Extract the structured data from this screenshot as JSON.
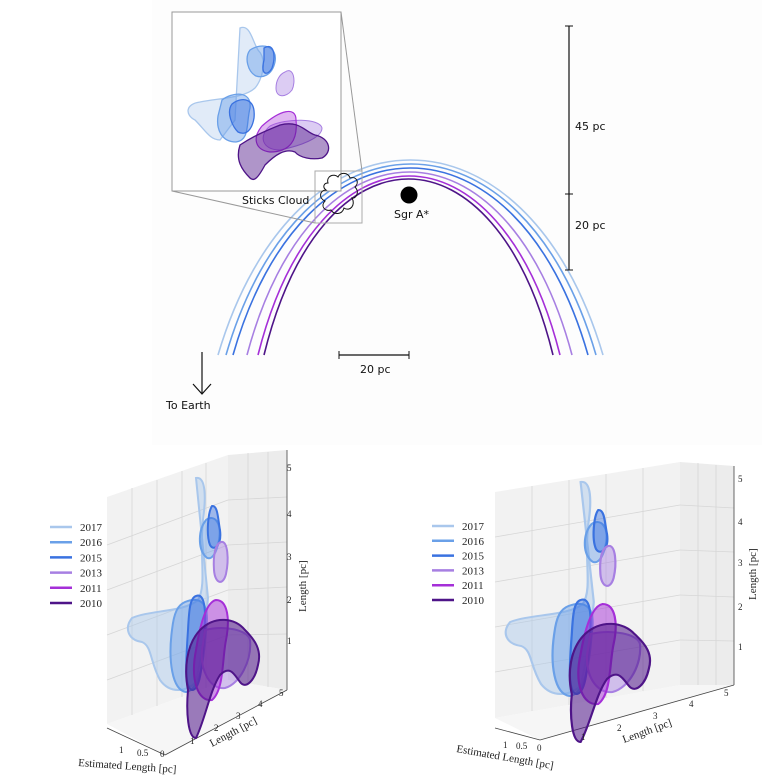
{
  "top_panel": {
    "inset_label": "Sticks Cloud",
    "center_label": "Sgr A*",
    "vertical_scale_upper": "45 pc",
    "vertical_scale_lower": "20 pc",
    "horizontal_scale": "20 pc",
    "direction_label": "To Earth"
  },
  "series": [
    {
      "year": "2017",
      "color": "#a9c7ec"
    },
    {
      "year": "2016",
      "color": "#6aa0e8"
    },
    {
      "year": "2015",
      "color": "#3a72e0"
    },
    {
      "year": "2013",
      "color": "#a77fe2"
    },
    {
      "year": "2011",
      "color": "#a52fd8"
    },
    {
      "year": "2010",
      "color": "#4e1488"
    }
  ],
  "plots": [
    {
      "z_label": "Length [pc]",
      "x_label": "Length [pc]",
      "y_label": "Estimated Length [pc]",
      "z_ticks": [
        "5",
        "4",
        "3",
        "2",
        "1"
      ],
      "x_ticks": [
        "1",
        "2",
        "3",
        "4",
        "5"
      ],
      "y_ticks": [
        "1",
        "0.5",
        "0"
      ]
    },
    {
      "z_label": "Length [pc]",
      "x_label": "Length [pc]",
      "y_label": "Estimated Length [pc]",
      "z_ticks": [
        "5",
        "4",
        "3",
        "2",
        "1"
      ],
      "x_ticks": [
        "1",
        "2",
        "3",
        "4",
        "5"
      ],
      "y_ticks": [
        "1",
        "0.5",
        "0"
      ]
    }
  ]
}
